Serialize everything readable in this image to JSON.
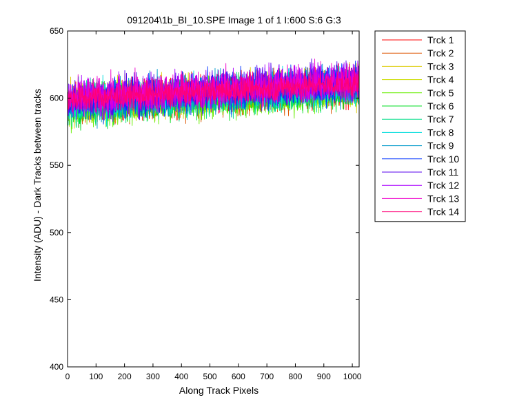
{
  "chart_data": {
    "type": "line",
    "title": "091204\\1b_BI_10.SPE  Image 1 of 1  I:600  S:6  G:3",
    "xlabel": "Along Track Pixels",
    "ylabel": "Intensity (ADU) - Dark Tracks between tracks",
    "xlim": [
      0,
      1024
    ],
    "ylim": [
      400,
      650
    ],
    "x_ticks": [
      0,
      100,
      200,
      300,
      400,
      500,
      600,
      700,
      800,
      900,
      1000
    ],
    "y_ticks": [
      400,
      450,
      500,
      550,
      600,
      650
    ],
    "grid": false,
    "legend_position": "outside-right",
    "x_range": [
      0,
      1023
    ],
    "series": [
      {
        "name": "Trck 1",
        "color": "#ff0000",
        "start": 596,
        "end": 609,
        "noise": 7
      },
      {
        "name": "Trck 2",
        "color": "#dd5500",
        "start": 594,
        "end": 607,
        "noise": 7
      },
      {
        "name": "Trck 3",
        "color": "#ddcc00",
        "start": 596,
        "end": 610,
        "noise": 7
      },
      {
        "name": "Trck 4",
        "color": "#ccdd00",
        "start": 595,
        "end": 609,
        "noise": 7
      },
      {
        "name": "Trck 5",
        "color": "#66ee00",
        "start": 593,
        "end": 606,
        "noise": 7
      },
      {
        "name": "Trck 6",
        "color": "#00dd22",
        "start": 594,
        "end": 607,
        "noise": 7
      },
      {
        "name": "Trck 7",
        "color": "#00dd88",
        "start": 595,
        "end": 608,
        "noise": 7
      },
      {
        "name": "Trck 8",
        "color": "#00dddd",
        "start": 596,
        "end": 609,
        "noise": 7
      },
      {
        "name": "Trck 9",
        "color": "#0099cc",
        "start": 597,
        "end": 610,
        "noise": 7
      },
      {
        "name": "Trck 10",
        "color": "#0033ff",
        "start": 598,
        "end": 612,
        "noise": 7
      },
      {
        "name": "Trck 11",
        "color": "#5500ee",
        "start": 599,
        "end": 613,
        "noise": 7
      },
      {
        "name": "Trck 12",
        "color": "#aa00ff",
        "start": 600,
        "end": 614,
        "noise": 7
      },
      {
        "name": "Trck 13",
        "color": "#ee00cc",
        "start": 600,
        "end": 613,
        "noise": 7
      },
      {
        "name": "Trck 14",
        "color": "#ff0077",
        "start": 599,
        "end": 611,
        "noise": 5
      }
    ]
  }
}
